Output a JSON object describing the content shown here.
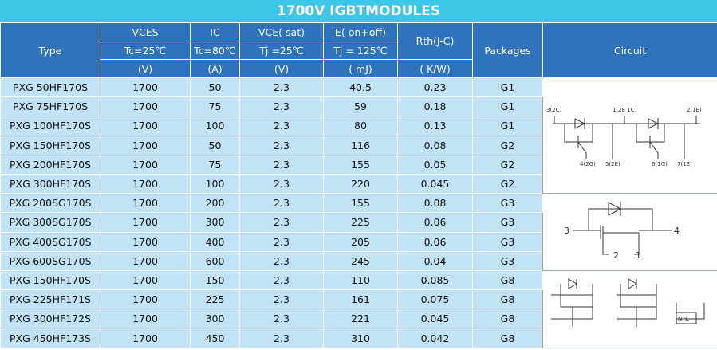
{
  "title": "1700V  IGBTMODULES",
  "table": {
    "header": {
      "type": "Type",
      "vces": [
        "VCES",
        "Tc=25℃",
        "(V)"
      ],
      "ic": [
        "IC",
        "Tc=80℃",
        "(A)"
      ],
      "vce": [
        "VCE( sat)",
        "Tj =25℃",
        "(V)"
      ],
      "e": [
        "E( on+off)",
        "Tj = 125℃",
        "( mJ)"
      ],
      "rth": [
        "Rth(J-C)",
        "( K/W)"
      ],
      "packages": "Packages",
      "circuit": "Circuit"
    },
    "rows": [
      [
        "PXG 50HF170S",
        1700,
        50,
        2.3,
        40.5,
        0.23,
        "G1"
      ],
      [
        "PXG 75HF170S",
        1700,
        75,
        2.3,
        59,
        0.18,
        "G1"
      ],
      [
        "PXG 100HF170S",
        1700,
        100,
        2.3,
        80,
        0.13,
        "G1"
      ],
      [
        "PXG 150HF170S",
        1700,
        50,
        2.3,
        116,
        0.08,
        "G2"
      ],
      [
        "PXG 200HF170S",
        1700,
        75,
        2.3,
        155,
        0.05,
        "G2"
      ],
      [
        "PXG 300HF170S",
        1700,
        100,
        2.3,
        220,
        0.045,
        "G2"
      ],
      [
        "PXG 200SG170S",
        1700,
        200,
        2.3,
        155,
        0.08,
        "G3"
      ],
      [
        "PXG 300SG170S",
        1700,
        300,
        2.3,
        225,
        0.06,
        "G3"
      ],
      [
        "PXG 400SG170S",
        1700,
        400,
        2.3,
        205,
        0.06,
        "G3"
      ],
      [
        "PXG 600SG170S",
        1700,
        600,
        2.3,
        245,
        0.04,
        "G3"
      ],
      [
        "PXG 150HF170S",
        1700,
        150,
        2.3,
        110,
        0.085,
        "G8"
      ],
      [
        "PXG 225HF171S",
        1700,
        225,
        2.3,
        161,
        0.075,
        "G8"
      ],
      [
        "PXG 300HF172S",
        1700,
        300,
        2.3,
        221,
        0.045,
        "G8"
      ],
      [
        "PXG 450HF173S",
        1700,
        450,
        2.3,
        310,
        0.042,
        "G8"
      ]
    ],
    "circuits": [
      [
        "3(2C)",
        "1(2E 1C)",
        "2(1E)",
        "4(2G)",
        "5(2E)",
        "6(1G)",
        "7(1E)"
      ],
      [
        "3",
        "4",
        "2",
        "1"
      ],
      [
        "NTC"
      ]
    ]
  }
}
